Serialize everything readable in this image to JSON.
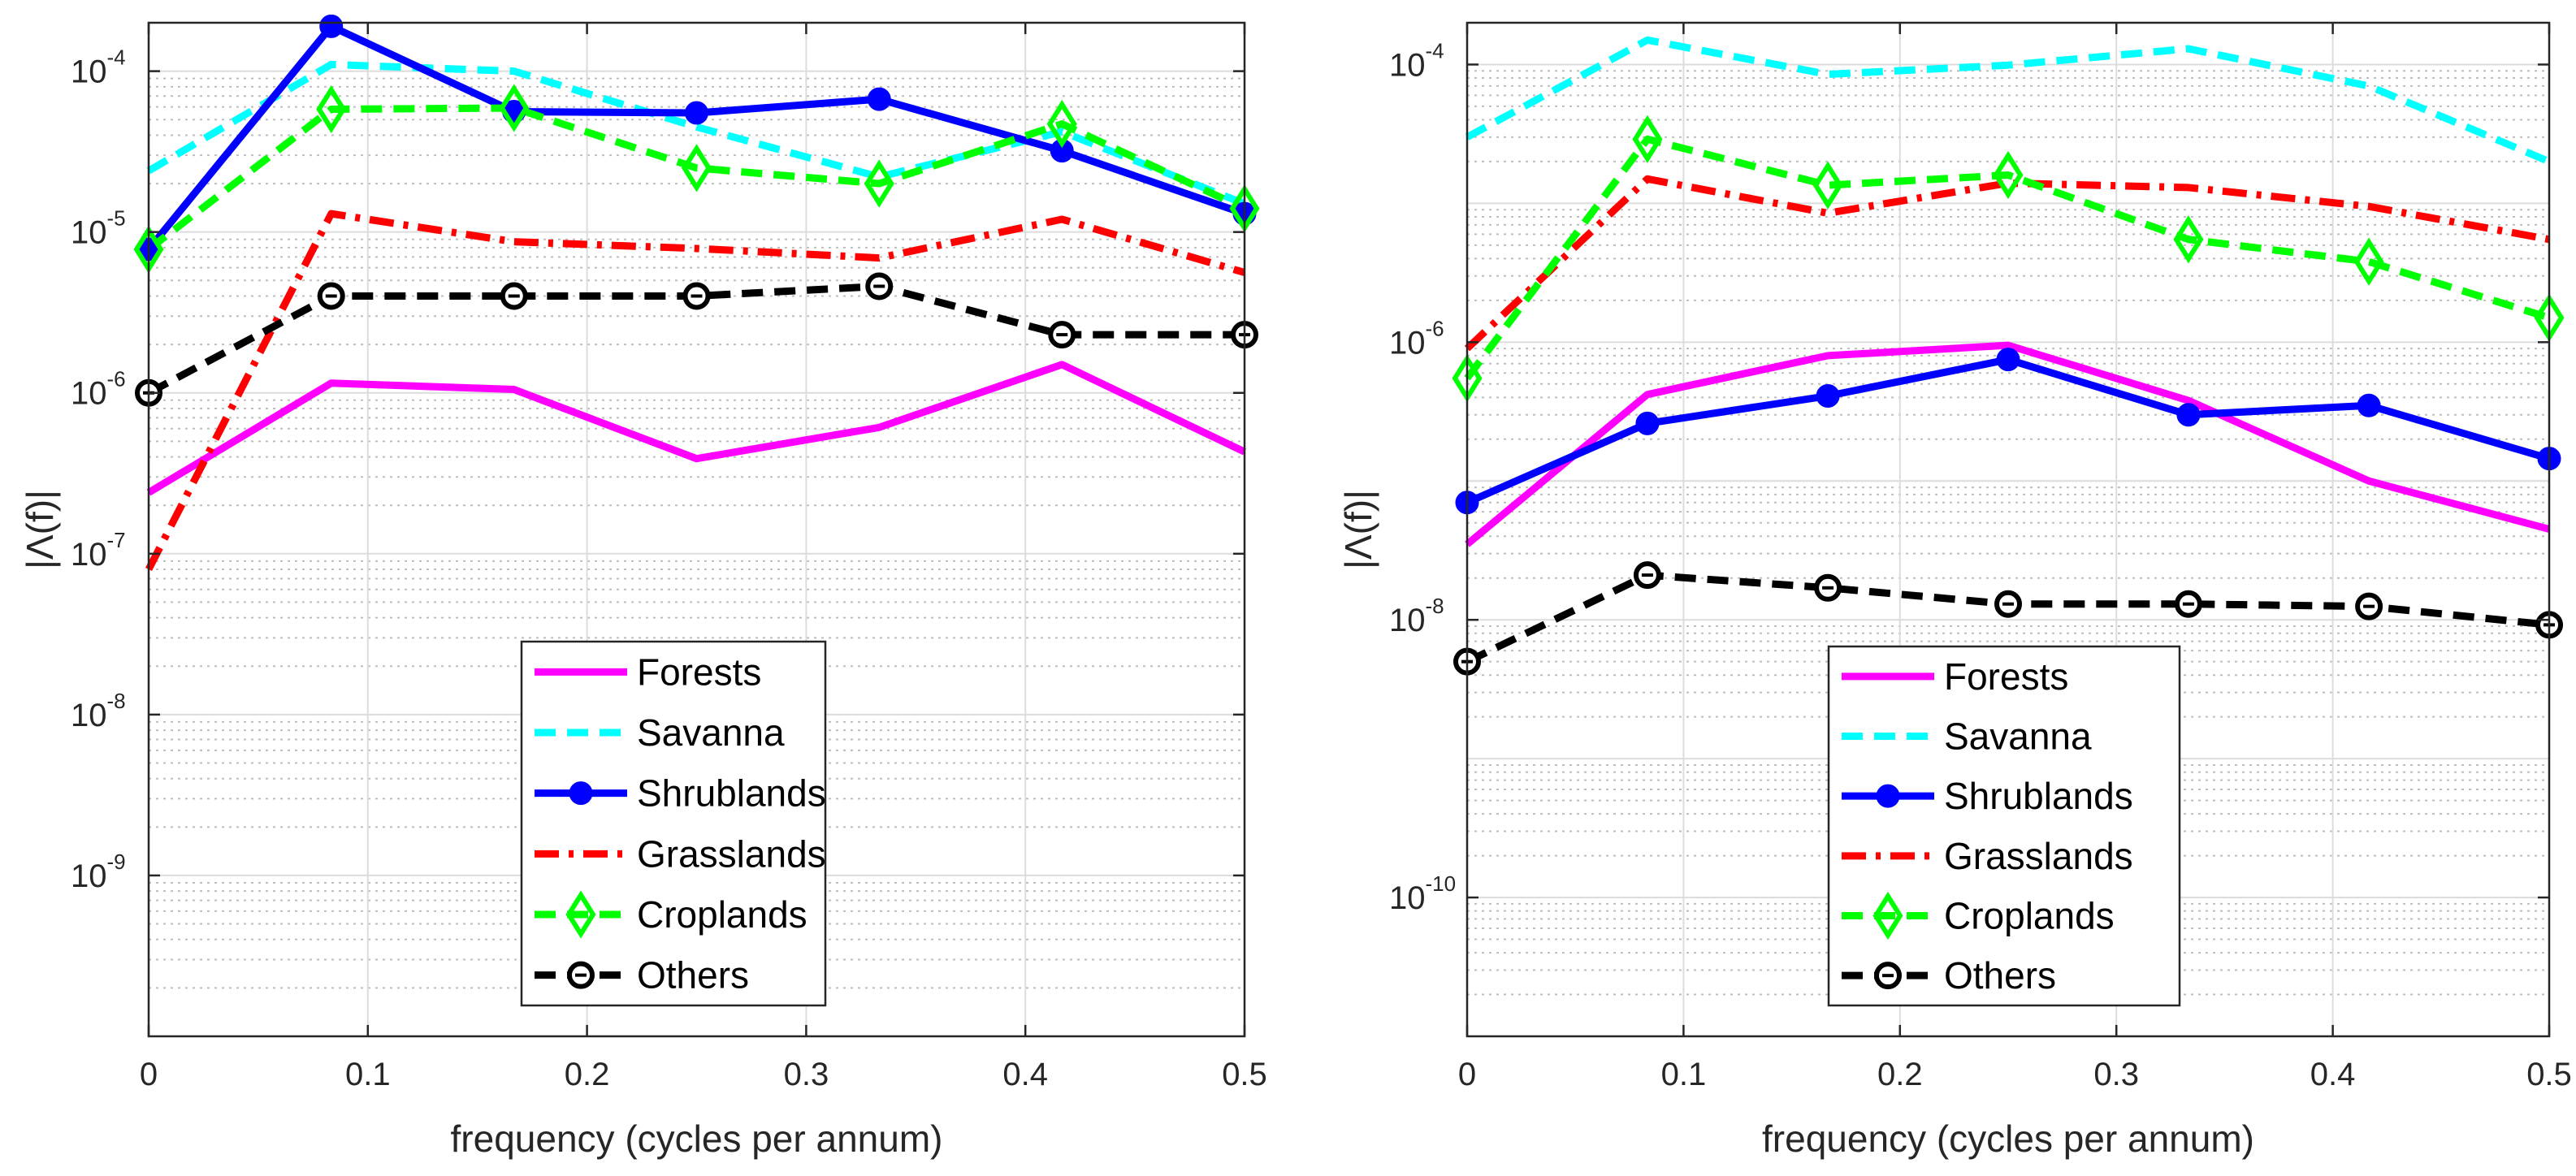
{
  "chart_data": [
    {
      "type": "line",
      "title": "",
      "xlabel": "frequency (cycles per annum)",
      "ylabel": "|Λ(f)|",
      "yscale": "log",
      "xlim": [
        0,
        0.5
      ],
      "ylim": [
        1e-10,
        0.0002
      ],
      "grid": true,
      "legend_position": "bottom-center",
      "x": [
        0,
        0.0833,
        0.1667,
        0.25,
        0.3333,
        0.4167,
        0.5
      ],
      "xticks": [
        0,
        0.1,
        0.2,
        0.3,
        0.4,
        0.5
      ],
      "xtick_labels": [
        "0",
        "0.1",
        "0.2",
        "0.3",
        "0.4",
        "0.5"
      ],
      "yticks": [
        {
          "base": "10",
          "exp": "-9",
          "value": 1e-09
        },
        {
          "base": "10",
          "exp": "-8",
          "value": 1e-08
        },
        {
          "base": "10",
          "exp": "-7",
          "value": 1e-07
        },
        {
          "base": "10",
          "exp": "-6",
          "value": 1e-06
        },
        {
          "base": "10",
          "exp": "-5",
          "value": 1e-05
        },
        {
          "base": "10",
          "exp": "-4",
          "value": 0.0001
        }
      ],
      "series": [
        {
          "name": "Forests",
          "color": "#ff00ff",
          "style": "solid",
          "marker": "none",
          "values": [
            2.4e-07,
            1.15e-06,
            1.05e-06,
            3.9e-07,
            6.1e-07,
            1.5e-06,
            4.3e-07
          ]
        },
        {
          "name": "Savanna",
          "color": "#00ffff",
          "style": "dashed",
          "marker": "none",
          "values": [
            2.4e-05,
            0.00011,
            0.0001,
            4.5e-05,
            2.2e-05,
            4.2e-05,
            1.5e-05
          ]
        },
        {
          "name": "Shrublands",
          "color": "#0000ff",
          "style": "solid",
          "marker": "dot",
          "values": [
            7.8e-06,
            0.00019,
            5.6e-05,
            5.5e-05,
            6.7e-05,
            3.2e-05,
            1.3e-05
          ]
        },
        {
          "name": "Grasslands",
          "color": "#ff0000",
          "style": "dashdot",
          "marker": "none",
          "values": [
            8e-08,
            1.3e-05,
            8.7e-06,
            7.9e-06,
            6.9e-06,
            1.2e-05,
            5.6e-06
          ]
        },
        {
          "name": "Croplands",
          "color": "#00ff00",
          "style": "dashed",
          "marker": "diamond",
          "values": [
            7.8e-06,
            5.8e-05,
            5.9e-05,
            2.5e-05,
            2e-05,
            4.7e-05,
            1.4e-05
          ]
        },
        {
          "name": "Others",
          "color": "#000000",
          "style": "dashed",
          "marker": "circle",
          "values": [
            1e-06,
            4e-06,
            4e-06,
            4e-06,
            4.6e-06,
            2.3e-06,
            2.3e-06
          ]
        }
      ]
    },
    {
      "type": "line",
      "title": "",
      "xlabel": "frequency (cycles per annum)",
      "ylabel": "|Λ(f)|",
      "yscale": "log",
      "xlim": [
        0,
        0.5
      ],
      "ylim": [
        1e-11,
        0.0002
      ],
      "grid": true,
      "legend_position": "bottom-center",
      "x": [
        0,
        0.0833,
        0.1667,
        0.25,
        0.3333,
        0.4167,
        0.5
      ],
      "xticks": [
        0,
        0.1,
        0.2,
        0.3,
        0.4,
        0.5
      ],
      "xtick_labels": [
        "0",
        "0.1",
        "0.2",
        "0.3",
        "0.4",
        "0.5"
      ],
      "yticks": [
        {
          "base": "10",
          "exp": "-10",
          "value": 1e-10
        },
        {
          "base": "10",
          "exp": "-8",
          "value": 1e-08
        },
        {
          "base": "10",
          "exp": "-6",
          "value": 1e-06
        },
        {
          "base": "10",
          "exp": "-4",
          "value": 0.0001
        }
      ],
      "series": [
        {
          "name": "Forests",
          "color": "#ff00ff",
          "style": "solid",
          "marker": "none",
          "values": [
            3.5e-08,
            4.2e-07,
            8e-07,
            9.5e-07,
            3.8e-07,
            1e-07,
            4.5e-08
          ]
        },
        {
          "name": "Savanna",
          "color": "#00ffff",
          "style": "dashed",
          "marker": "none",
          "values": [
            3e-05,
            0.00015,
            8.5e-05,
            9.9e-05,
            0.00013,
            7e-05,
            2e-05
          ]
        },
        {
          "name": "Shrublands",
          "color": "#0000ff",
          "style": "solid",
          "marker": "dot",
          "values": [
            7e-08,
            2.6e-07,
            4.1e-07,
            7.5e-07,
            3e-07,
            3.5e-07,
            1.45e-07
          ]
        },
        {
          "name": "Grasslands",
          "color": "#ff0000",
          "style": "dashdot",
          "marker": "none",
          "values": [
            9e-07,
            1.5e-05,
            8.5e-06,
            1.4e-05,
            1.3e-05,
            9.5e-06,
            5.5e-06
          ]
        },
        {
          "name": "Croplands",
          "color": "#00ff00",
          "style": "dashed",
          "marker": "diamond",
          "values": [
            5.5e-07,
            2.9e-05,
            1.35e-05,
            1.6e-05,
            5.5e-06,
            3.8e-06,
            1.5e-06
          ]
        },
        {
          "name": "Others",
          "color": "#000000",
          "style": "dashed",
          "marker": "circle",
          "values": [
            5e-09,
            2.1e-08,
            1.7e-08,
            1.3e-08,
            1.3e-08,
            1.25e-08,
            9.2e-09
          ]
        }
      ]
    }
  ]
}
